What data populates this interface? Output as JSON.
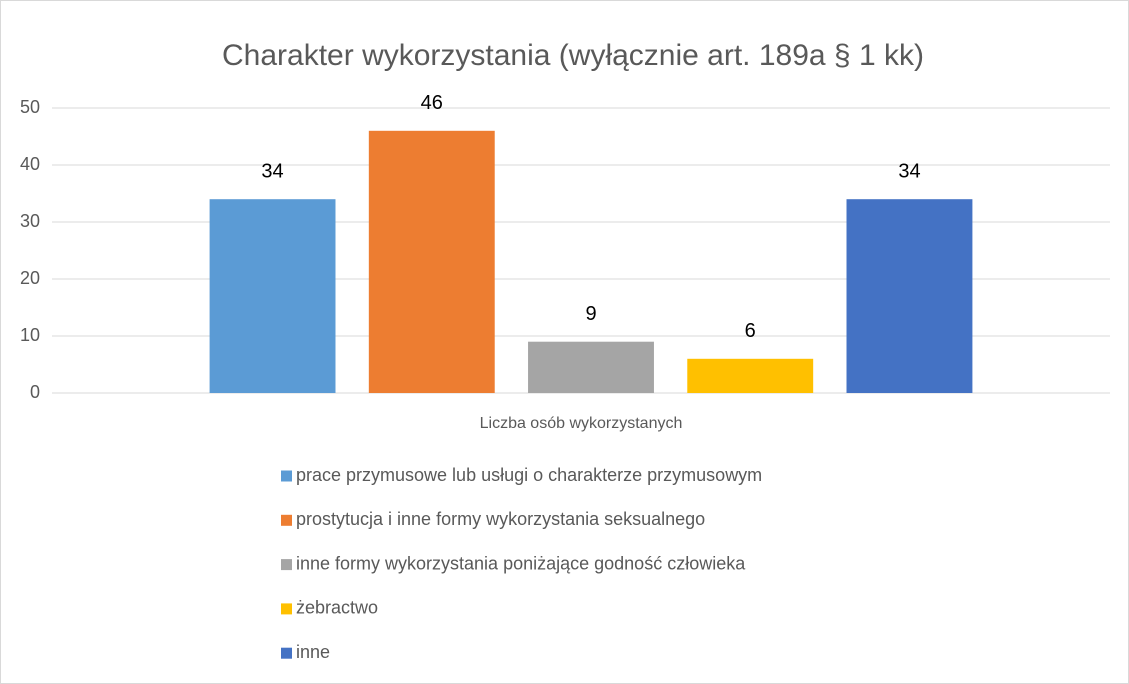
{
  "chart_data": {
    "type": "bar",
    "title": "Charakter wykorzystania (wyłącznie art. 189a § 1 kk)",
    "categories": [
      "Liczba osób wykorzystanych"
    ],
    "series": [
      {
        "name": "prace przymusowe lub usługi o charakterze przymusowym",
        "color": "#5b9bd5",
        "values": [
          34
        ]
      },
      {
        "name": "prostytucja i inne formy wykorzystania seksualnego",
        "color": "#ed7d31",
        "values": [
          46
        ]
      },
      {
        "name": "inne formy wykorzystania poniżające godność człowieka",
        "color": "#a5a5a5",
        "values": [
          9
        ]
      },
      {
        "name": "żebractwo",
        "color": "#ffc000",
        "values": [
          6
        ]
      },
      {
        "name": "inne",
        "color": "#4472c4",
        "values": [
          34
        ]
      }
    ],
    "ylim": [
      0,
      50
    ],
    "yticks": [
      0,
      10,
      20,
      30,
      40,
      50
    ],
    "grid": true,
    "legend": "bottom"
  }
}
